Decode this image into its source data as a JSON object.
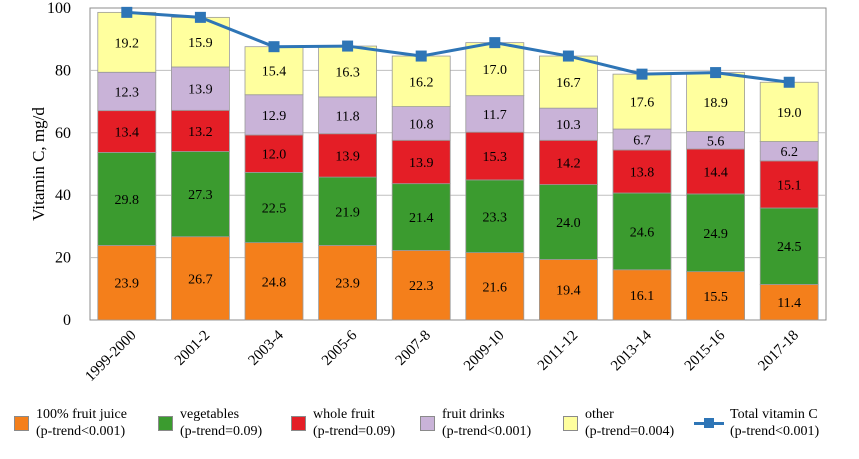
{
  "chart_data": {
    "type": "stacked-bar-with-line",
    "ylabel": "Vitamin C, mg/d",
    "ylim": [
      0,
      100
    ],
    "yticks": [
      0,
      20,
      40,
      60,
      80,
      100
    ],
    "categories": [
      "1999-2000",
      "2001-2",
      "2003-4",
      "2005-6",
      "2007-8",
      "2009-10",
      "2011-12",
      "2013-14",
      "2015-16",
      "2017-18"
    ],
    "series": [
      {
        "name": "100% fruit juice",
        "trend": "(p-trend<0.001)",
        "color": "#f47f1b",
        "values": [
          23.9,
          26.7,
          24.8,
          23.9,
          22.3,
          21.6,
          19.4,
          16.1,
          15.5,
          11.4
        ],
        "labels": [
          "23.9",
          "26.7",
          "24.8",
          "23.9",
          "22.3",
          "21.6",
          "19.4",
          "16.1",
          "15.5",
          "11.4"
        ]
      },
      {
        "name": "vegetables",
        "trend": "(p-trend=0.09)",
        "color": "#3b9b2f",
        "values": [
          29.8,
          27.3,
          22.5,
          21.9,
          21.4,
          23.3,
          24.0,
          24.6,
          24.9,
          24.5
        ],
        "labels": [
          "29.8",
          "27.3",
          "22.5",
          "21.9",
          "21.4",
          "23.3",
          "24.0",
          "24.6",
          "24.9",
          "24.5"
        ]
      },
      {
        "name": "whole fruit",
        "trend": "(p-trend=0.09)",
        "color": "#e41e26",
        "values": [
          13.4,
          13.2,
          12.0,
          13.9,
          13.9,
          15.3,
          14.2,
          13.8,
          14.4,
          15.1
        ],
        "labels": [
          "13.4",
          "13.2",
          "12.0",
          "13.9",
          "13.9",
          "15.3",
          "14.2",
          "13.8",
          "14.4",
          "15.1"
        ]
      },
      {
        "name": "fruit drinks",
        "trend": "(p-trend<0.001)",
        "color": "#c9b3d8",
        "values": [
          12.3,
          13.9,
          12.9,
          11.8,
          10.8,
          11.7,
          10.3,
          6.7,
          5.6,
          6.2
        ],
        "labels": [
          "12.3",
          "13.9",
          "12.9",
          "11.8",
          "10.8",
          "11.7",
          "10.3",
          "6.7",
          "5.6",
          "6.2"
        ]
      },
      {
        "name": "other",
        "trend": "(p-trend=0.004)",
        "color": "#ffff9e",
        "values": [
          19.2,
          15.9,
          15.4,
          16.3,
          16.2,
          17.0,
          16.7,
          17.6,
          18.9,
          19.0
        ],
        "labels": [
          "19.2",
          "15.9",
          "15.4",
          "16.3",
          "16.2",
          "17.0",
          "16.7",
          "17.6",
          "18.9",
          "19.0"
        ]
      }
    ],
    "line": {
      "name": "Total vitamin C",
      "trend": "(p-trend<0.001)",
      "color": "#2e75b6",
      "values": [
        98.6,
        97.0,
        87.6,
        87.8,
        84.6,
        88.9,
        84.6,
        78.8,
        79.3,
        76.2
      ]
    }
  }
}
